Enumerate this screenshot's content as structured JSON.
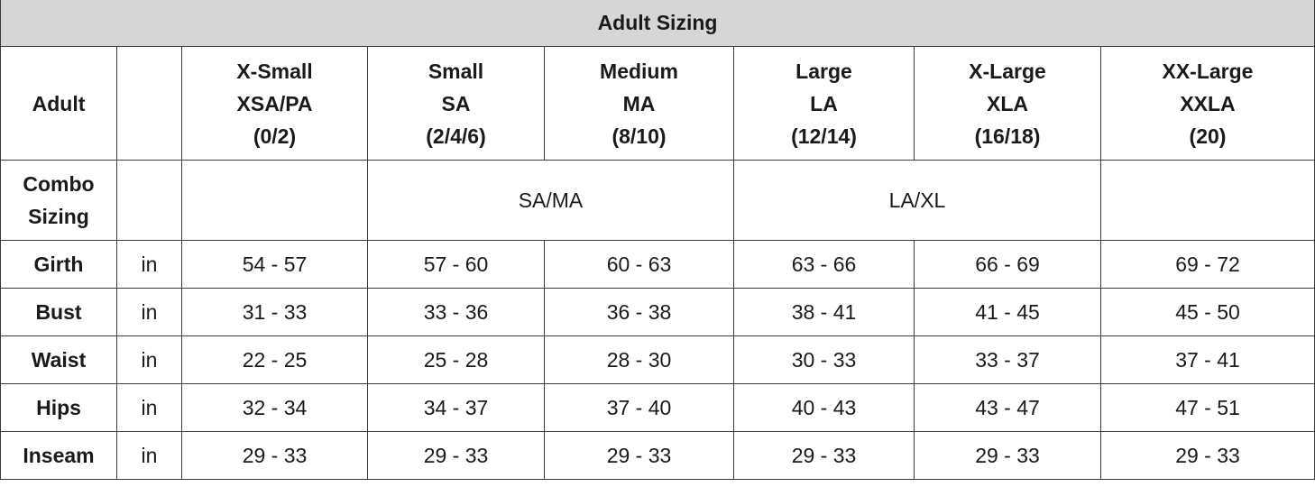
{
  "title": "Adult Sizing",
  "header": {
    "label": "Adult",
    "sizes": [
      {
        "name": "X-Small",
        "code": "XSA/PA",
        "numeric": "(0/2)"
      },
      {
        "name": "Small",
        "code": "SA",
        "numeric": "(2/4/6)"
      },
      {
        "name": "Medium",
        "code": "MA",
        "numeric": "(8/10)"
      },
      {
        "name": "Large",
        "code": "LA",
        "numeric": "(12/14)"
      },
      {
        "name": "X-Large",
        "code": "XLA",
        "numeric": "(16/18)"
      },
      {
        "name": "XX-Large",
        "code": "XXLA",
        "numeric": "(20)"
      }
    ]
  },
  "combo": {
    "label_line1": "Combo",
    "label_line2": "Sizing",
    "groups": [
      "SA/MA",
      "LA/XL"
    ]
  },
  "measurements": [
    {
      "label": "Girth",
      "unit": "in",
      "values": [
        "54 - 57",
        "57 - 60",
        "60 - 63",
        "63 - 66",
        "66 - 69",
        "69 - 72"
      ]
    },
    {
      "label": "Bust",
      "unit": "in",
      "values": [
        "31 - 33",
        "33 - 36",
        "36 - 38",
        "38 - 41",
        "41 - 45",
        "45 - 50"
      ]
    },
    {
      "label": "Waist",
      "unit": "in",
      "values": [
        "22 - 25",
        "25 - 28",
        "28 - 30",
        "30 - 33",
        "33 - 37",
        "37 - 41"
      ]
    },
    {
      "label": "Hips",
      "unit": "in",
      "values": [
        "32 - 34",
        "34 - 37",
        "37 - 40",
        "40 - 43",
        "43 - 47",
        "47 - 51"
      ]
    },
    {
      "label": "Inseam",
      "unit": "in",
      "values": [
        "29 - 33",
        "29 - 33",
        "29 - 33",
        "29 - 33",
        "29 - 33",
        "29 - 33"
      ]
    }
  ]
}
